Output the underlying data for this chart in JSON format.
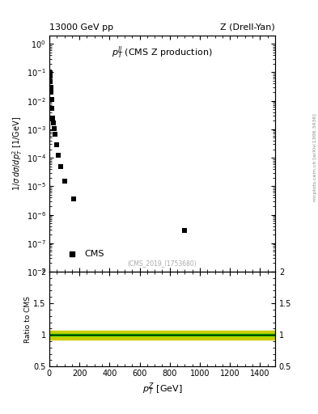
{
  "title_left": "13000 GeV pp",
  "title_right": "Z (Drell-Yan)",
  "inner_title": "$p_T^{ll}$ (CMS Z production)",
  "watermark": "(CMS_2019_I1753680)",
  "ylabel_main": "$1/\\sigma\\,d\\sigma/dp_T^2$ [1/GeV]",
  "ylabel_ratio": "Ratio to CMS",
  "xlabel": "$p_T^Z$ [GeV]",
  "right_label": "mcplots.cern.ch [arXiv:1306.3436]",
  "cms_data_x": [
    1.5,
    2.5,
    3.5,
    4.5,
    5.5,
    7,
    9,
    11,
    14,
    18,
    23,
    28,
    33,
    38,
    47,
    57.5,
    75,
    102.5,
    160,
    900
  ],
  "cms_data_y": [
    0.09,
    0.105,
    0.095,
    0.085,
    0.072,
    0.048,
    0.03,
    0.02,
    0.011,
    0.0055,
    0.0025,
    0.0017,
    0.00105,
    0.00065,
    0.00028,
    0.00012,
    4.8e-05,
    1.5e-05,
    3.5e-06,
    2.8e-07
  ],
  "ratio_y_center": 1.0,
  "ratio_band_green_low": 0.985,
  "ratio_band_green_high": 1.015,
  "ratio_band_yellow_low": 0.93,
  "ratio_band_yellow_high": 1.07,
  "xlim": [
    0,
    1500
  ],
  "ylim_main_low": 1e-08,
  "ylim_main_high": 2.0,
  "ylim_ratio": [
    0.5,
    2.0
  ],
  "color_data": "black",
  "color_band_green": "#00bb00",
  "color_band_yellow": "#cccc00",
  "marker_size": 4.5,
  "background_color": "#ffffff"
}
